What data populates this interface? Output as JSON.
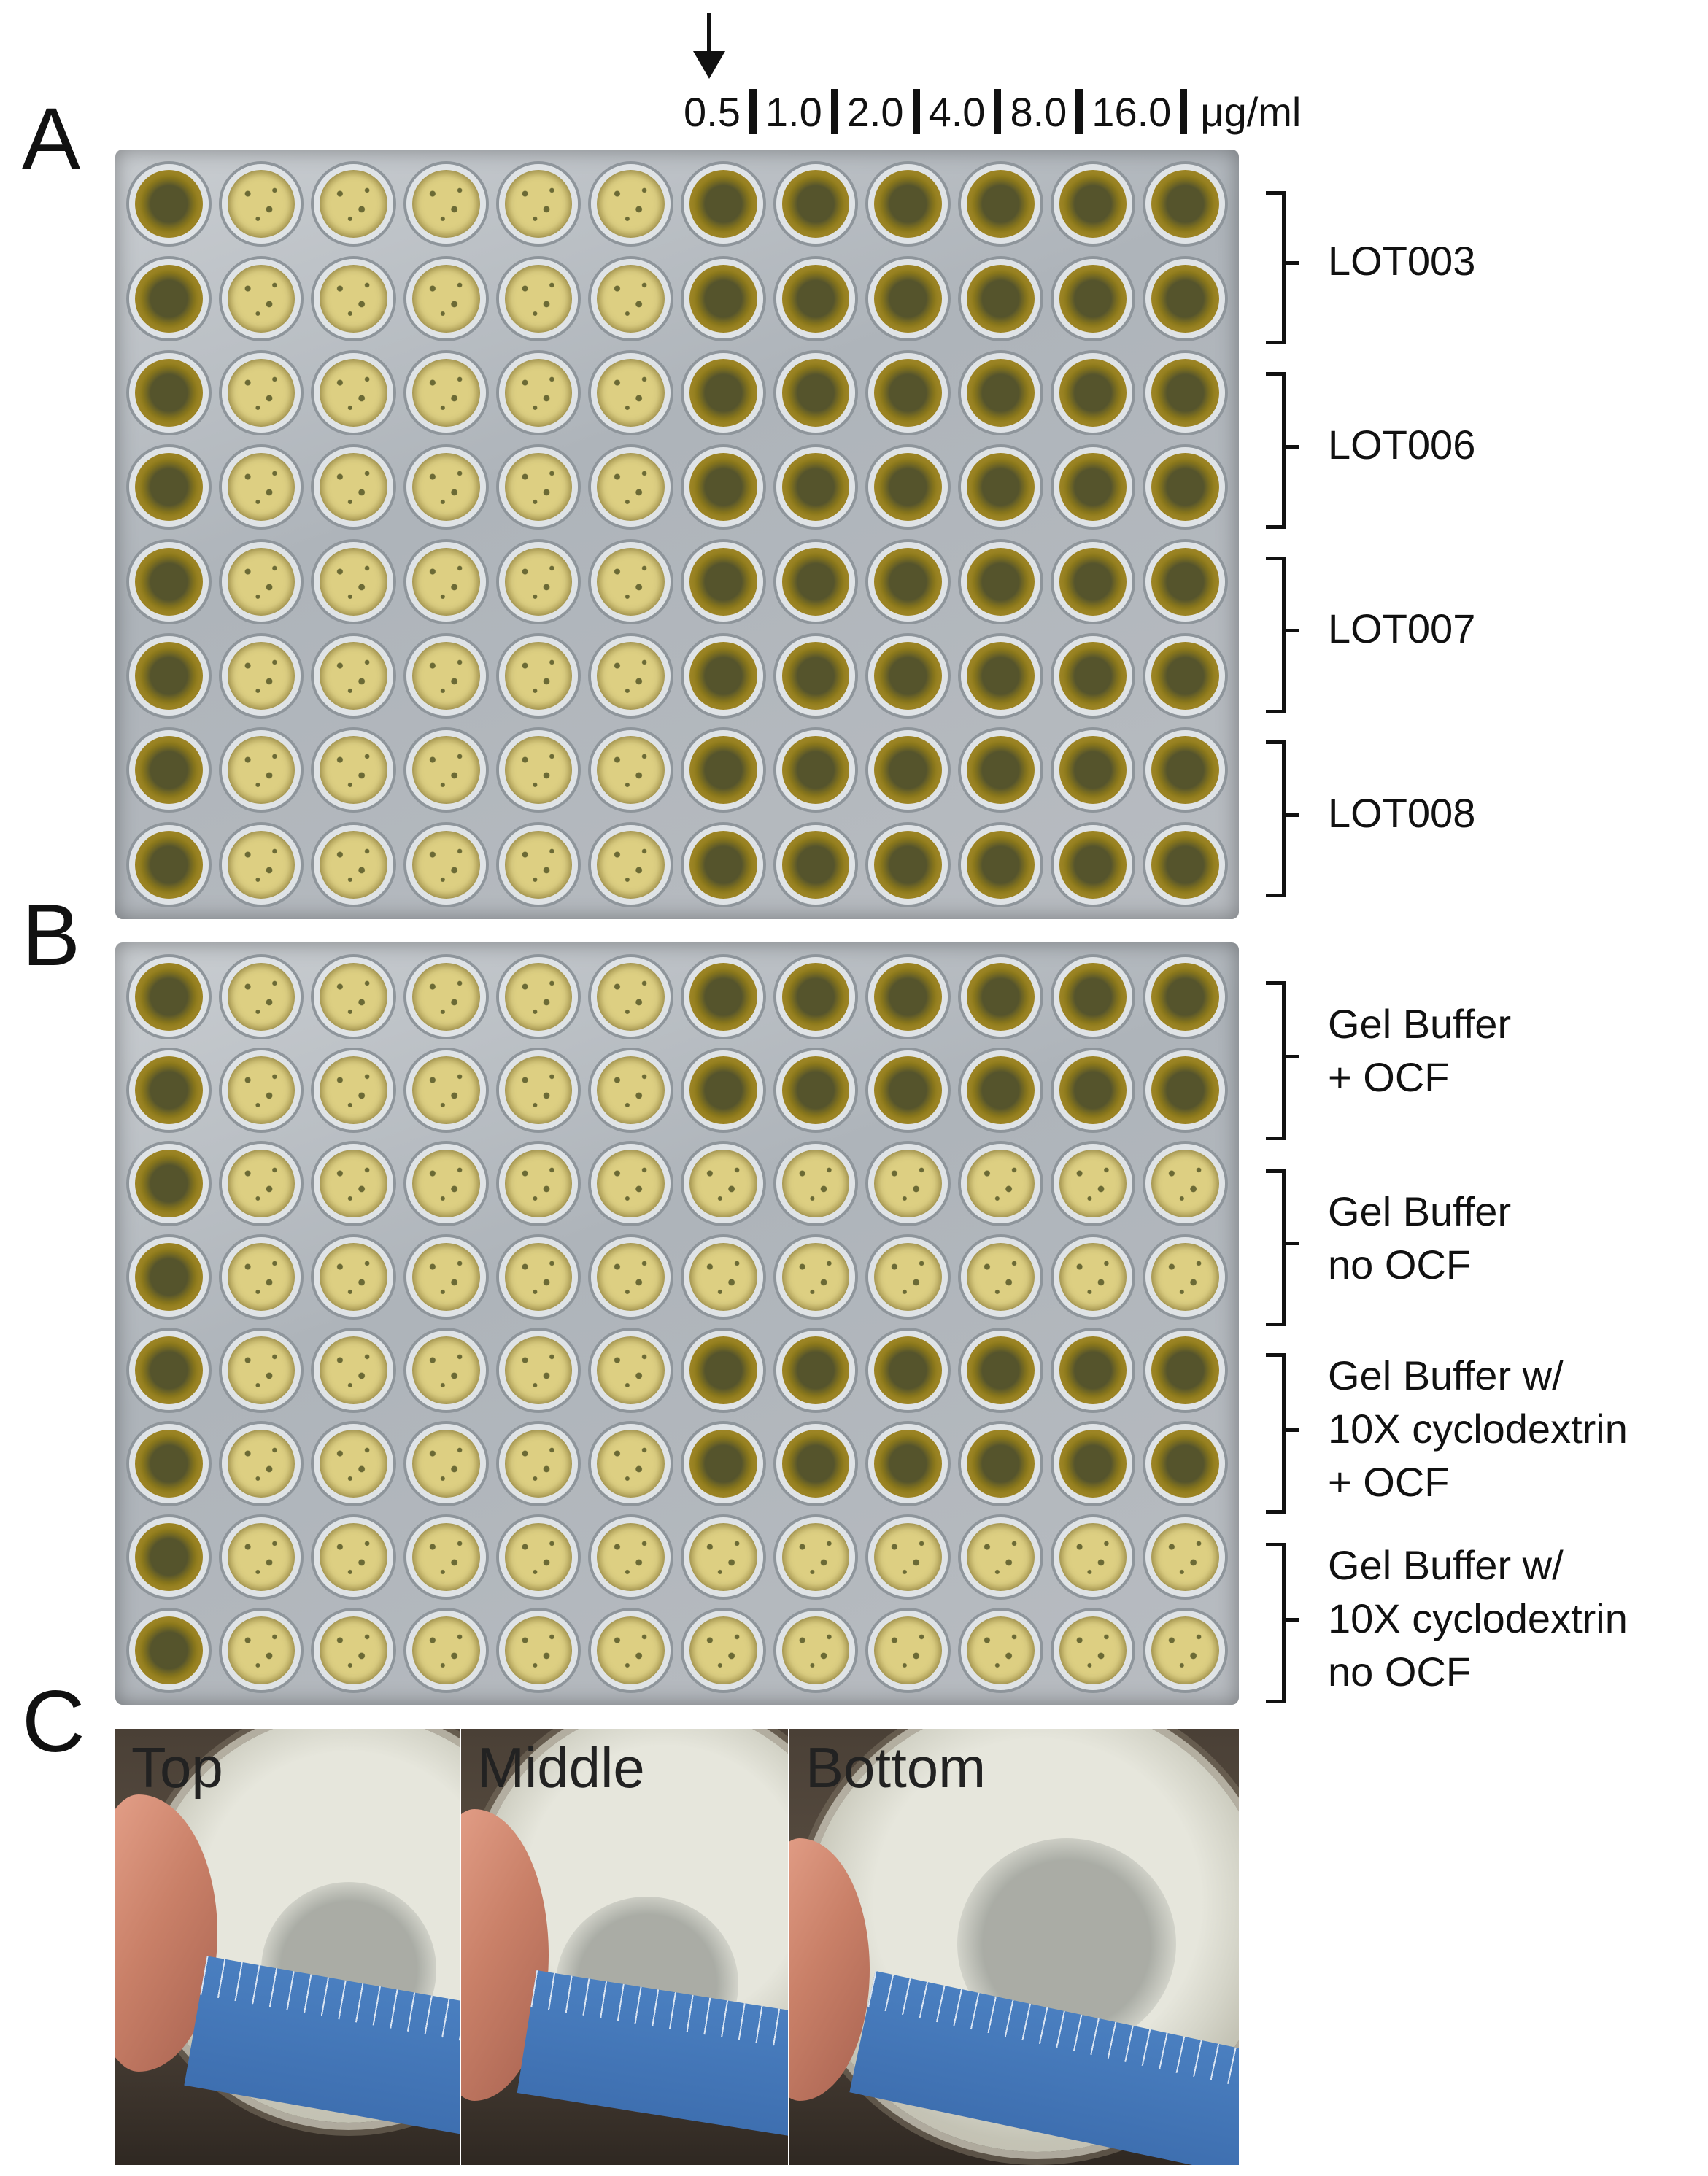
{
  "panels": {
    "a": "A",
    "b": "B",
    "c": "C"
  },
  "concentrations": [
    "0.5",
    "1.0",
    "2.0",
    "4.0",
    "8.0",
    "16.0"
  ],
  "unit": "μg/ml",
  "panel_a": {
    "groups": [
      "LOT003",
      "LOT006",
      "LOT007",
      "LOT008"
    ],
    "clear_from_column": 7
  },
  "panel_b": {
    "groups": [
      {
        "lines": [
          "Gel Buffer",
          "+ OCF"
        ]
      },
      {
        "lines": [
          "Gel Buffer",
          "no OCF"
        ]
      },
      {
        "lines": [
          "Gel Buffer w/",
          "10X cyclodextrin",
          "+ OCF"
        ]
      },
      {
        "lines": [
          "Gel Buffer w/",
          "10X cyclodextrin",
          "no OCF"
        ]
      }
    ]
  },
  "panel_c": {
    "photos": [
      "Top",
      "Middle",
      "Bottom"
    ]
  },
  "colors": {
    "turbid_well": "#ddcf82",
    "clear_well": "#8d7a1c",
    "ruler": "#3e6fb0"
  }
}
